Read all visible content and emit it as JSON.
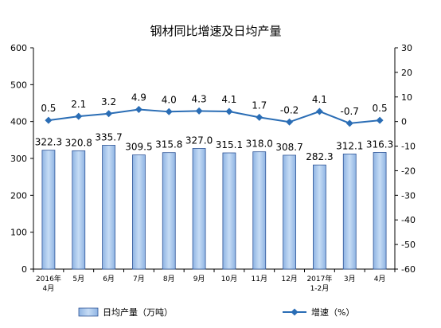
{
  "chart_data": {
    "title": "钢材同比增速及日均产量",
    "type": "bar+line",
    "categories": [
      [
        "2016年",
        "4月"
      ],
      [
        "5月"
      ],
      [
        "6月"
      ],
      [
        "7月"
      ],
      [
        "8月"
      ],
      [
        "9月"
      ],
      [
        "10月"
      ],
      [
        "11月"
      ],
      [
        "12月"
      ],
      [
        "2017年",
        "1-2月"
      ],
      [
        "3月"
      ],
      [
        "4月"
      ]
    ],
    "series": [
      {
        "name": "日均产量（万吨）",
        "type": "bar",
        "axis": "left",
        "values": [
          322.3,
          320.8,
          335.7,
          309.5,
          315.8,
          327.0,
          315.1,
          318.0,
          308.7,
          282.3,
          312.1,
          316.3
        ],
        "labels": [
          "322.3",
          "320.8",
          "335.7",
          "309.5",
          "315.8",
          "327.0",
          "315.1",
          "318.0",
          "308.7",
          "282.3",
          "312.1",
          "316.3"
        ]
      },
      {
        "name": "增速（%）",
        "type": "line",
        "axis": "right",
        "values": [
          0.5,
          2.1,
          3.2,
          4.9,
          4.0,
          4.3,
          4.1,
          1.7,
          -0.2,
          4.1,
          -0.7,
          0.5
        ],
        "labels": [
          "0.5",
          "2.1",
          "3.2",
          "4.9",
          "4.0",
          "4.3",
          "4.1",
          "1.7",
          "-0.2",
          "4.1",
          "-0.7",
          "0.5"
        ]
      }
    ],
    "y_left": {
      "min": 0,
      "max": 600,
      "step": 100
    },
    "y_right": {
      "min": -60,
      "max": 30,
      "step": 10
    },
    "grid": false,
    "legend": "bottom",
    "colors": {
      "bar_fill": "#a9c8ef",
      "bar_edge": "#2f5597",
      "line": "#2a6db5",
      "axis": "#000000"
    }
  }
}
